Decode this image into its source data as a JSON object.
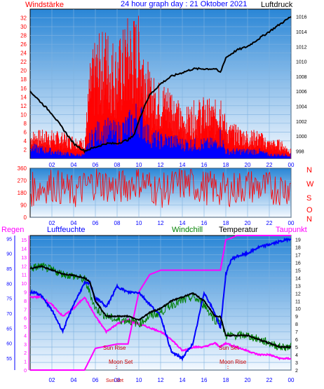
{
  "title": "24 hour graph day : 21 Oktober 2021",
  "colors": {
    "wind": "#ff0000",
    "gust": "#0000ff",
    "pressure": "#000000",
    "humidity": "#0000ff",
    "windchill": "#008000",
    "temperature": "#000000",
    "dewpoint": "#ff00ff",
    "rain": "#ff00ff",
    "sky_top": "#2a86d6",
    "sky_bottom": "#f4f9ff"
  },
  "x_ticks": [
    "02",
    "04",
    "06",
    "08",
    "10",
    "12",
    "14",
    "16",
    "18",
    "20",
    "22",
    "00"
  ],
  "chart_data": [
    {
      "type": "bar",
      "panel": "wind",
      "left_label": "Windstärke",
      "right_label": "Luftdruck",
      "left_ylim": [
        0,
        34
      ],
      "left_ticks": [
        "2",
        "4",
        "6",
        "8",
        "10",
        "12",
        "14",
        "16",
        "18",
        "20",
        "22",
        "24",
        "26",
        "28",
        "30",
        "32"
      ],
      "right_ylim": [
        997,
        1017
      ],
      "right_ticks": [
        "998",
        "1000",
        "1002",
        "1004",
        "1006",
        "1008",
        "1010",
        "1012",
        "1014",
        "1016"
      ],
      "series": [
        {
          "name": "Windstärke",
          "x": [
            0,
            2,
            4,
            5,
            5.5,
            6,
            7,
            8,
            9,
            10,
            10.5,
            11,
            12,
            13,
            14,
            15,
            16,
            17,
            17.5,
            18,
            19,
            20,
            21,
            22,
            23,
            24
          ],
          "values": [
            6,
            6,
            5,
            4,
            20,
            25,
            28,
            24,
            30,
            30,
            26,
            18,
            16,
            16,
            10,
            12,
            13,
            12,
            16,
            8,
            7,
            6,
            6,
            4,
            4,
            2
          ]
        },
        {
          "name": "Böen",
          "x": [
            0,
            2,
            4,
            5,
            5.5,
            6,
            7,
            8,
            9,
            10,
            10.5,
            11,
            12,
            13,
            14,
            15,
            16,
            17,
            17.5,
            18,
            19,
            20,
            21,
            22,
            23,
            24
          ],
          "values": [
            3,
            2,
            1,
            1,
            5,
            7,
            8,
            7,
            9,
            12,
            9,
            6,
            5,
            5,
            4,
            4,
            4,
            4,
            6,
            2,
            2,
            2,
            2,
            1,
            1,
            1
          ]
        },
        {
          "name": "Luftdruck",
          "x": [
            0,
            1,
            2,
            3,
            4,
            5,
            6,
            7,
            8,
            9,
            9.5,
            10,
            10.5,
            11,
            12,
            13,
            14,
            15,
            16,
            17,
            17.5,
            18,
            19,
            20,
            21,
            22,
            23,
            24
          ],
          "values": [
            1006,
            1004.5,
            1003,
            1001,
            999,
            998,
            998.5,
            999,
            999,
            999.5,
            1000,
            1002,
            1004,
            1005.5,
            1007,
            1008,
            1008.5,
            1009,
            1009,
            1009,
            1008.5,
            1010.5,
            1011.5,
            1012,
            1013,
            1014,
            1015,
            1016
          ]
        }
      ]
    },
    {
      "type": "bar",
      "panel": "direction",
      "left_ticks": [
        "0",
        "90",
        "180",
        "270",
        "360"
      ],
      "right_labels": [
        "N",
        "W",
        "S",
        "O",
        "N"
      ],
      "ylim": [
        0,
        360
      ],
      "series": [
        {
          "name": "Windrichtung",
          "x": [
            0,
            2,
            4,
            6,
            8,
            10,
            12,
            14,
            16,
            18,
            20,
            22,
            24
          ],
          "values": [
            200,
            240,
            180,
            260,
            210,
            270,
            190,
            250,
            220,
            200,
            230,
            210,
            220
          ]
        }
      ]
    },
    {
      "type": "line",
      "panel": "climate",
      "legend": [
        "Regen",
        "Luftfeuchte",
        "Windchill",
        "Temperatur",
        "Taupunkt"
      ],
      "far_left_ylim": [
        0,
        15.5
      ],
      "far_left_ticks": [
        "0",
        "1",
        "2",
        "3",
        "4",
        "5",
        "6",
        "7",
        "8",
        "9",
        "10",
        "11",
        "12",
        "13",
        "14",
        "15"
      ],
      "left_ylim": [
        51,
        96
      ],
      "left_ticks": [
        "55",
        "60",
        "65",
        "70",
        "75",
        "80",
        "85",
        "90",
        "95"
      ],
      "right_ylim": [
        2,
        19.5
      ],
      "right_ticks": [
        "2",
        "3",
        "4",
        "5",
        "6",
        "7",
        "8",
        "9",
        "10",
        "11",
        "12",
        "13",
        "14",
        "15",
        "16",
        "17",
        "18",
        "19"
      ],
      "series": [
        {
          "name": "Luftfeuchte",
          "x": [
            0,
            0.5,
            1,
            2,
            3,
            4,
            5,
            5.5,
            6,
            6.5,
            7,
            8,
            9,
            10,
            11,
            12,
            13,
            14,
            15,
            16,
            17,
            17.5,
            18,
            18.5,
            19,
            20,
            21,
            22,
            23,
            24
          ],
          "values": [
            77,
            77,
            76,
            71,
            64,
            73,
            80,
            80,
            75,
            74,
            72,
            79,
            77,
            77,
            73,
            69,
            57,
            55,
            60,
            77,
            70,
            65,
            83,
            88,
            89,
            90,
            92,
            93,
            94,
            95
          ]
        },
        {
          "name": "Temperatur",
          "x": [
            0,
            1,
            2,
            3,
            4,
            5,
            5.5,
            6,
            7,
            8,
            9,
            10,
            11,
            12,
            13,
            14,
            15,
            16,
            17,
            17.5,
            18,
            19,
            20,
            21,
            22,
            23,
            24
          ],
          "values": [
            15.2,
            15.5,
            15,
            14.5,
            14.3,
            14,
            13.5,
            11,
            9,
            9,
            9,
            8.5,
            9.5,
            10,
            11,
            11.5,
            12,
            11,
            9,
            9,
            6.5,
            6.5,
            6.5,
            6,
            5.5,
            5,
            5
          ]
        },
        {
          "name": "Windchill",
          "x": [
            0,
            1,
            2,
            3,
            4,
            5,
            5.5,
            6,
            7,
            8,
            9,
            10,
            11,
            12,
            13,
            14,
            15,
            16,
            17,
            17.5,
            18,
            19,
            20,
            21,
            22,
            23,
            24
          ],
          "values": [
            15.2,
            15.5,
            15,
            14.5,
            14.2,
            13.8,
            12,
            10,
            9,
            8.5,
            8.5,
            8,
            9,
            9.5,
            10.5,
            11,
            11.5,
            10.5,
            8.5,
            8.5,
            6.5,
            6.5,
            6.5,
            6,
            5.5,
            5,
            5
          ]
        },
        {
          "name": "Taupunkt",
          "x": [
            0,
            1,
            2,
            3,
            4,
            5,
            6,
            7,
            8,
            9,
            10,
            11,
            12,
            13,
            14,
            15,
            16,
            17,
            17.5,
            18,
            19,
            20,
            21,
            22,
            23,
            24
          ],
          "values": [
            11.5,
            11.5,
            10.5,
            9,
            10,
            11.5,
            9,
            7,
            8,
            8.5,
            8,
            7.5,
            7,
            6,
            4.5,
            5,
            5,
            5.5,
            5,
            5.5,
            5,
            4.5,
            4,
            4,
            3.5,
            3.5
          ]
        },
        {
          "name": "Regen",
          "x": [
            0,
            5,
            6,
            8,
            9,
            10,
            11,
            12,
            13,
            14,
            15,
            16,
            17,
            17.5,
            18,
            18.5,
            19,
            24
          ],
          "values": [
            0,
            0,
            2.5,
            3,
            3,
            9,
            11,
            11.5,
            11.5,
            11.5,
            11.5,
            11.5,
            11.5,
            11.5,
            15,
            15.2,
            15.5,
            15.5
          ]
        }
      ],
      "annotations": [
        "Sun Rise",
        "Moon Set",
        "Sun Set",
        "Moon Rise",
        "Sun Set"
      ]
    }
  ]
}
